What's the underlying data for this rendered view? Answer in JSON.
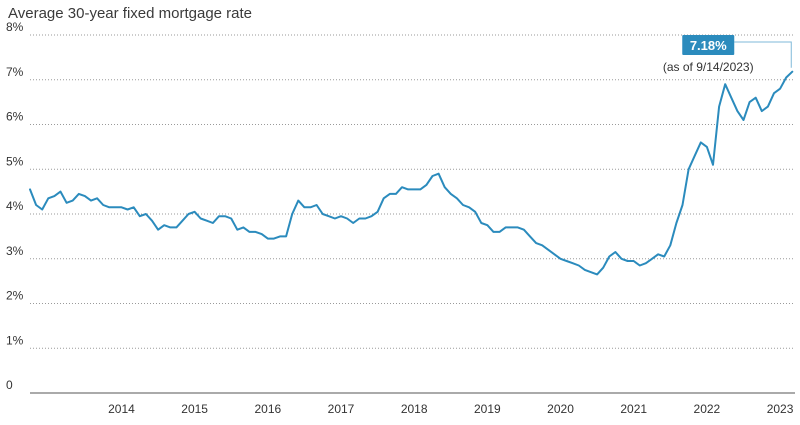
{
  "chart_data": {
    "type": "line",
    "title": "Average 30-year fixed mortgage rate",
    "xlabel": "",
    "ylabel": "",
    "ylim": [
      0,
      8
    ],
    "xlim": [
      "2013-04",
      "2023-09"
    ],
    "y_ticks": [
      "0",
      "1%",
      "2%",
      "3%",
      "4%",
      "5%",
      "6%",
      "7%",
      "8%"
    ],
    "x_ticks": [
      "2014",
      "2015",
      "2016",
      "2017",
      "2018",
      "2019",
      "2020",
      "2021",
      "2022",
      "2023"
    ],
    "grid": true,
    "line_color": "#2b8bbd",
    "series": [
      {
        "x": [
          "2013-04",
          "2013-05",
          "2013-06",
          "2013-07",
          "2013-08",
          "2013-09",
          "2013-10",
          "2013-11",
          "2013-12",
          "2014-01",
          "2014-02",
          "2014-03",
          "2014-04",
          "2014-05",
          "2014-06",
          "2014-07",
          "2014-08",
          "2014-09",
          "2014-10",
          "2014-11",
          "2014-12",
          "2015-01",
          "2015-02",
          "2015-03",
          "2015-04",
          "2015-05",
          "2015-06",
          "2015-07",
          "2015-08",
          "2015-09",
          "2015-10",
          "2015-11",
          "2015-12",
          "2016-01",
          "2016-02",
          "2016-03",
          "2016-04",
          "2016-05",
          "2016-06",
          "2016-07",
          "2016-08",
          "2016-09",
          "2016-10",
          "2016-11",
          "2016-12",
          "2017-01",
          "2017-02",
          "2017-03",
          "2017-04",
          "2017-05",
          "2017-06",
          "2017-07",
          "2017-08",
          "2017-09",
          "2017-10",
          "2017-11",
          "2017-12",
          "2018-01",
          "2018-02",
          "2018-03",
          "2018-04",
          "2018-05",
          "2018-06",
          "2018-07",
          "2018-08",
          "2018-09",
          "2018-10",
          "2018-11",
          "2018-12",
          "2019-01",
          "2019-02",
          "2019-03",
          "2019-04",
          "2019-05",
          "2019-06",
          "2019-07",
          "2019-08",
          "2019-09",
          "2019-10",
          "2019-11",
          "2019-12",
          "2020-01",
          "2020-02",
          "2020-03",
          "2020-04",
          "2020-05",
          "2020-06",
          "2020-07",
          "2020-08",
          "2020-09",
          "2020-10",
          "2020-11",
          "2020-12",
          "2021-01",
          "2021-02",
          "2021-03",
          "2021-04",
          "2021-05",
          "2021-06",
          "2021-07",
          "2021-08",
          "2021-09",
          "2021-10",
          "2021-11",
          "2021-12",
          "2022-01",
          "2022-02",
          "2022-03",
          "2022-04",
          "2022-05",
          "2022-06",
          "2022-07",
          "2022-08",
          "2022-09",
          "2022-10",
          "2022-11",
          "2022-12",
          "2023-01",
          "2023-02",
          "2023-03",
          "2023-04",
          "2023-05",
          "2023-06",
          "2023-07",
          "2023-08",
          "2023-09"
        ],
        "values": [
          4.55,
          4.2,
          4.1,
          4.35,
          4.4,
          4.5,
          4.25,
          4.3,
          4.45,
          4.4,
          4.3,
          4.35,
          4.2,
          4.15,
          4.15,
          4.15,
          4.1,
          4.15,
          3.95,
          4.0,
          3.85,
          3.65,
          3.75,
          3.7,
          3.7,
          3.85,
          4.0,
          4.05,
          3.9,
          3.85,
          3.8,
          3.95,
          3.95,
          3.9,
          3.65,
          3.7,
          3.6,
          3.6,
          3.55,
          3.45,
          3.45,
          3.5,
          3.5,
          4.0,
          4.3,
          4.15,
          4.15,
          4.2,
          4.0,
          3.95,
          3.9,
          3.95,
          3.9,
          3.8,
          3.9,
          3.9,
          3.95,
          4.05,
          4.35,
          4.45,
          4.45,
          4.6,
          4.55,
          4.55,
          4.55,
          4.65,
          4.85,
          4.9,
          4.6,
          4.45,
          4.35,
          4.2,
          4.15,
          4.05,
          3.8,
          3.75,
          3.6,
          3.6,
          3.7,
          3.7,
          3.7,
          3.65,
          3.5,
          3.35,
          3.3,
          3.2,
          3.1,
          3.0,
          2.95,
          2.9,
          2.85,
          2.75,
          2.7,
          2.65,
          2.8,
          3.05,
          3.15,
          3.0,
          2.95,
          2.95,
          2.85,
          2.9,
          3.0,
          3.1,
          3.05,
          3.3,
          3.8,
          4.2,
          5.0,
          5.3,
          5.6,
          5.5,
          5.1,
          6.4,
          6.9,
          6.6,
          6.3,
          6.1,
          6.5,
          6.6,
          6.3,
          6.4,
          6.7,
          6.8,
          7.05,
          7.18
        ]
      }
    ],
    "callout": {
      "value_label": "7.18%",
      "date_label": "(as of 9/14/2023)"
    }
  }
}
